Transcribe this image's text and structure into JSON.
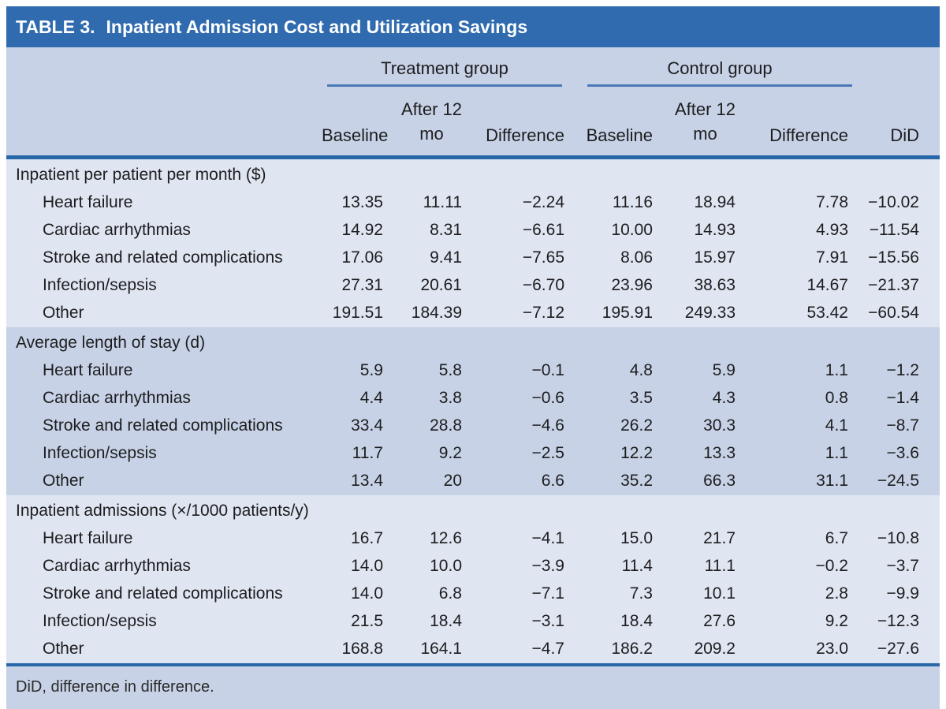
{
  "title": {
    "label": "TABLE 3.",
    "text": "Inpatient Admission Cost and Utilization Savings"
  },
  "header": {
    "treatment_label": "Treatment group",
    "control_label": "Control group",
    "baseline": "Baseline",
    "after12_line1": "After 12",
    "after12_line2": "mo",
    "difference": "Difference",
    "did": "DiD"
  },
  "sections": [
    {
      "header": "Inpatient per patient per month ($)",
      "rows": [
        {
          "label": "Heart failure",
          "values": [
            "13.35",
            "11.11",
            "−2.24",
            "11.16",
            "18.94",
            "7.78",
            "−10.02"
          ]
        },
        {
          "label": "Cardiac arrhythmias",
          "values": [
            "14.92",
            "8.31",
            "−6.61",
            "10.00",
            "14.93",
            "4.93",
            "−11.54"
          ]
        },
        {
          "label": "Stroke and related complications",
          "values": [
            "17.06",
            "9.41",
            "−7.65",
            "8.06",
            "15.97",
            "7.91",
            "−15.56"
          ]
        },
        {
          "label": "Infection/sepsis",
          "values": [
            "27.31",
            "20.61",
            "−6.70",
            "23.96",
            "38.63",
            "14.67",
            "−21.37"
          ]
        },
        {
          "label": "Other",
          "values": [
            "191.51",
            "184.39",
            "−7.12",
            "195.91",
            "249.33",
            "53.42",
            "−60.54"
          ]
        }
      ]
    },
    {
      "header": "Average length of stay (d)",
      "rows": [
        {
          "label": "Heart failure",
          "values": [
            "5.9",
            "5.8",
            "−0.1",
            "4.8",
            "5.9",
            "1.1",
            "−1.2"
          ]
        },
        {
          "label": "Cardiac arrhythmias",
          "values": [
            "4.4",
            "3.8",
            "−0.6",
            "3.5",
            "4.3",
            "0.8",
            "−1.4"
          ]
        },
        {
          "label": "Stroke and related complications",
          "values": [
            "33.4",
            "28.8",
            "−4.6",
            "26.2",
            "30.3",
            "4.1",
            "−8.7"
          ]
        },
        {
          "label": "Infection/sepsis",
          "values": [
            "11.7",
            "9.2",
            "−2.5",
            "12.2",
            "13.3",
            "1.1",
            "−3.6"
          ]
        },
        {
          "label": "Other",
          "values": [
            "13.4",
            "20",
            "6.6",
            "35.2",
            "66.3",
            "31.1",
            "−24.5"
          ]
        }
      ]
    },
    {
      "header": "Inpatient admissions (×/1000 patients/y)",
      "rows": [
        {
          "label": "Heart failure",
          "values": [
            "16.7",
            "12.6",
            "−4.1",
            "15.0",
            "21.7",
            "6.7",
            "−10.8"
          ]
        },
        {
          "label": "Cardiac arrhythmias",
          "values": [
            "14.0",
            "10.0",
            "−3.9",
            "11.4",
            "11.1",
            "−0.2",
            "−3.7"
          ]
        },
        {
          "label": "Stroke and related complications",
          "values": [
            "14.0",
            "6.8",
            "−7.1",
            "7.3",
            "10.1",
            "2.8",
            "−9.9"
          ]
        },
        {
          "label": "Infection/sepsis",
          "values": [
            "21.5",
            "18.4",
            "−3.1",
            "18.4",
            "27.6",
            "9.2",
            "−12.3"
          ]
        },
        {
          "label": "Other",
          "values": [
            "168.8",
            "164.1",
            "−4.7",
            "186.2",
            "209.2",
            "23.0",
            "−27.6"
          ]
        }
      ]
    }
  ],
  "footnote": "DiD, difference in difference.",
  "colors": {
    "title_bar": "#2f6bae",
    "band_dark": "#c7d2e6",
    "band_light": "#dfe5f1",
    "rule_blue": "#2766a9",
    "group_underline": "#4a78b6",
    "text": "#1d1d1f"
  }
}
